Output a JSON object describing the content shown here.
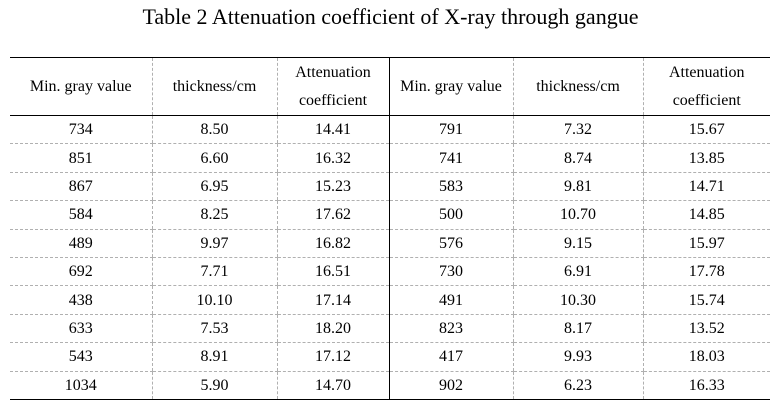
{
  "title": "Table 2 Attenuation coefficient of X-ray through gangue",
  "headers": {
    "left": [
      "Min. gray value",
      "thickness/cm",
      "Attenuation coefficient"
    ],
    "right": [
      "Min. gray value",
      "thickness/cm",
      "Attenuation coefficient"
    ]
  },
  "rows": [
    [
      "734",
      "8.50",
      "14.41",
      "791",
      "7.32",
      "15.67"
    ],
    [
      "851",
      "6.60",
      "16.32",
      "741",
      "8.74",
      "13.85"
    ],
    [
      "867",
      "6.95",
      "15.23",
      "583",
      "9.81",
      "14.71"
    ],
    [
      "584",
      "8.25",
      "17.62",
      "500",
      "10.70",
      "14.85"
    ],
    [
      "489",
      "9.97",
      "16.82",
      "576",
      "9.15",
      "15.97"
    ],
    [
      "692",
      "7.71",
      "16.51",
      "730",
      "6.91",
      "17.78"
    ],
    [
      "438",
      "10.10",
      "17.14",
      "491",
      "10.30",
      "15.74"
    ],
    [
      "633",
      "7.53",
      "18.20",
      "823",
      "8.17",
      "13.52"
    ],
    [
      "543",
      "8.91",
      "17.12",
      "417",
      "9.93",
      "18.03"
    ],
    [
      "1034",
      "5.90",
      "14.70",
      "902",
      "6.23",
      "16.33"
    ]
  ]
}
